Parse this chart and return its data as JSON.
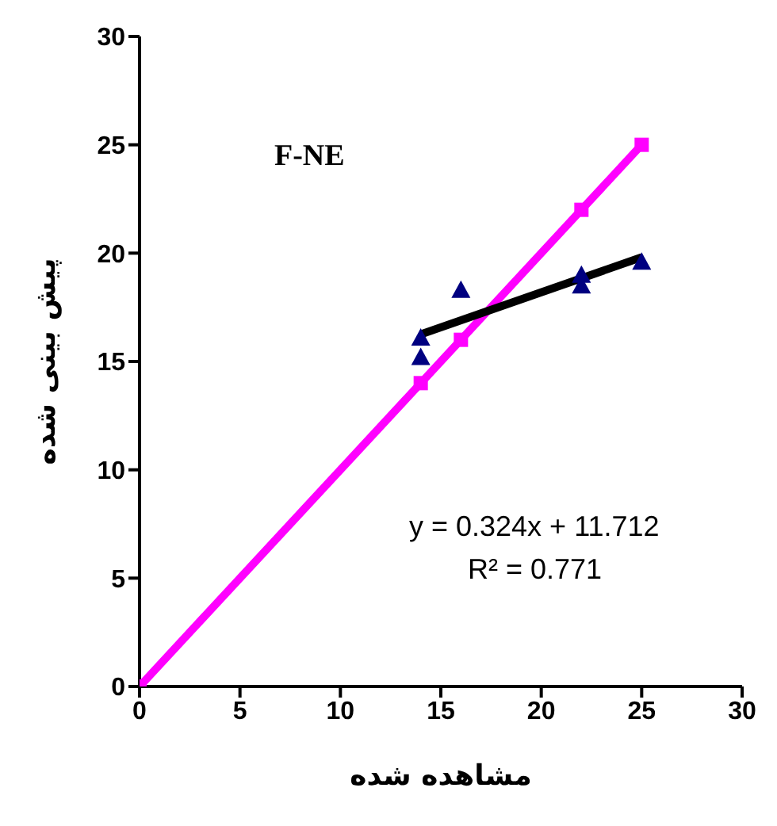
{
  "chart_data": {
    "type": "scatter",
    "xlabel": "مشاهده شده",
    "ylabel": "پیش بینی شده",
    "annotations": [
      "F-NE",
      "y = 0.324x + 11.712",
      "R² = 0.771"
    ],
    "xlim": [
      0,
      30
    ],
    "xticks": [
      0,
      5,
      10,
      15,
      20,
      25,
      30
    ],
    "ylim": [
      0,
      30
    ],
    "yticks": [
      0,
      5,
      10,
      15,
      20,
      25,
      30
    ],
    "grid": false,
    "legend": false,
    "series": [
      {
        "type": "line",
        "color": "#ff00ff",
        "marker": "square",
        "x": [
          0,
          14,
          16,
          22,
          25
        ],
        "values": [
          0,
          14,
          16,
          22,
          25
        ]
      },
      {
        "color": "#000080",
        "marker": "triangle",
        "x": [
          14,
          14,
          16,
          22,
          22,
          25
        ],
        "values": [
          16.1,
          15.2,
          18.3,
          19,
          18.5,
          19.6
        ]
      },
      {
        "type": "line",
        "color": "#000000",
        "marker": "none",
        "x": [
          14,
          25
        ],
        "values": [
          16.25,
          19.81
        ]
      }
    ]
  }
}
